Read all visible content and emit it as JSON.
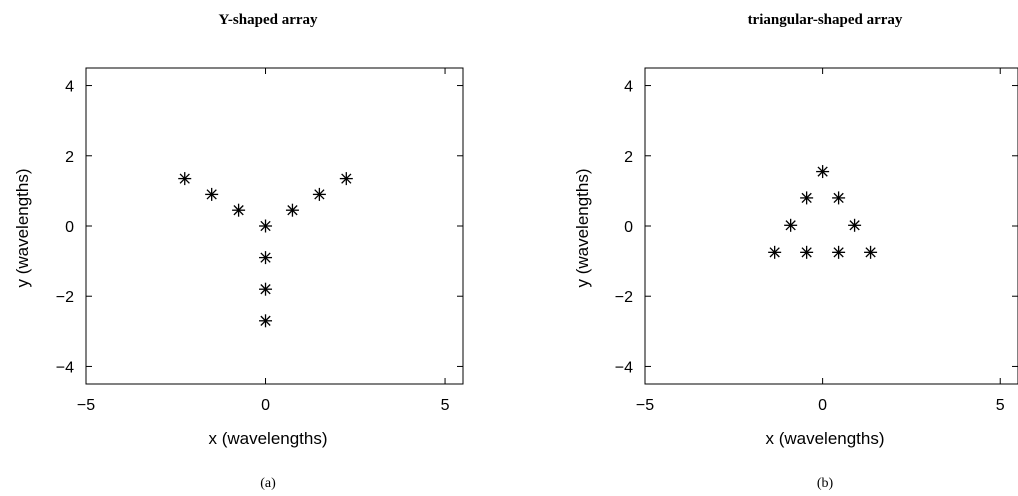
{
  "chart_data": [
    {
      "type": "scatter",
      "title": "Y-shaped array",
      "xlabel": "x (wavelengths)",
      "ylabel": "y (wavelengths)",
      "caption": "(a)",
      "xlim": [
        -5,
        5.5
      ],
      "ylim": [
        -4.5,
        4.5
      ],
      "xticks": [
        -5,
        0,
        5
      ],
      "yticks": [
        -4,
        -2,
        0,
        2,
        4
      ],
      "grid": false,
      "marker": "asterisk",
      "series": [
        {
          "points": [
            [
              -2.25,
              1.35
            ],
            [
              -1.5,
              0.9
            ],
            [
              -0.75,
              0.45
            ],
            [
              0,
              0
            ],
            [
              0,
              -0.9
            ],
            [
              0,
              -1.8
            ],
            [
              0,
              -2.7
            ],
            [
              0.75,
              0.45
            ],
            [
              1.5,
              0.9
            ],
            [
              2.25,
              1.35
            ]
          ]
        }
      ]
    },
    {
      "type": "scatter",
      "title": "triangular-shaped array",
      "xlabel": "x (wavelengths)",
      "ylabel": "y (wavelengths)",
      "caption": "(b)",
      "xlim": [
        -5,
        5.5
      ],
      "ylim": [
        -4.5,
        4.5
      ],
      "xticks": [
        -5,
        0,
        5
      ],
      "yticks": [
        -4,
        -2,
        0,
        2,
        4
      ],
      "grid": false,
      "marker": "asterisk",
      "series": [
        {
          "points": [
            [
              0,
              1.55
            ],
            [
              -0.45,
              0.8
            ],
            [
              0.45,
              0.8
            ],
            [
              -0.9,
              0.02
            ],
            [
              0.9,
              0.02
            ],
            [
              -1.35,
              -0.75
            ],
            [
              -0.45,
              -0.75
            ],
            [
              0.45,
              -0.75
            ],
            [
              1.35,
              -0.75
            ]
          ]
        }
      ]
    }
  ]
}
